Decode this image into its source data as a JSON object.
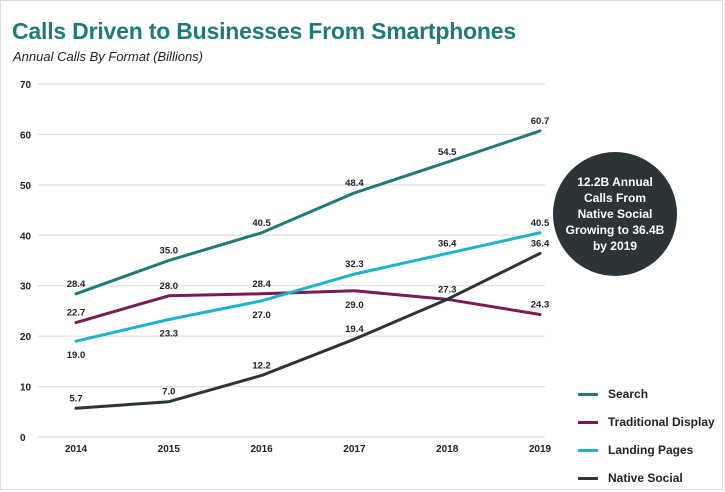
{
  "title": "Calls Driven to Businesses From Smartphones",
  "subtitle": "Annual Calls By Format (Billions)",
  "callout": "12.2B Annual Calls From Native Social Growing to 36.4B by 2019",
  "colors": {
    "Search": "#1f7a78",
    "Traditional Display": "#7a1c52",
    "Landing Pages": "#1fb3c9",
    "Native Social": "#2c3438",
    "grid": "#d9d9d9",
    "callout": "#2c3438"
  },
  "chart_data": {
    "type": "line",
    "title": "Calls Driven to Businesses From Smartphones",
    "subtitle": "Annual Calls By Format (Billions)",
    "xlabel": "",
    "ylabel": "",
    "categories": [
      "2014",
      "2015",
      "2016",
      "2017",
      "2018",
      "2019"
    ],
    "ylim": [
      0,
      70
    ],
    "yticks": [
      0,
      10,
      20,
      30,
      40,
      50,
      60,
      70
    ],
    "grid": true,
    "legend": "bottom-right",
    "series": [
      {
        "name": "Search",
        "values": [
          28.4,
          35.0,
          40.5,
          48.4,
          54.5,
          60.7
        ],
        "labels": [
          "28.4",
          "35.0",
          "40.5",
          "48.4",
          "54.5",
          "60.7"
        ],
        "label_pos": [
          "above",
          "above",
          "above",
          "above",
          "above",
          "above"
        ]
      },
      {
        "name": "Traditional Display",
        "values": [
          22.7,
          28.0,
          28.4,
          29.0,
          27.3,
          24.3
        ],
        "labels": [
          "22.7",
          "28.0",
          "28.4",
          "29.0",
          "27.3",
          "24.3"
        ],
        "label_pos": [
          "above",
          "above",
          "above",
          "below",
          "above",
          "above"
        ]
      },
      {
        "name": "Landing Pages",
        "values": [
          19.0,
          23.3,
          27.0,
          32.3,
          36.4,
          40.5
        ],
        "labels": [
          "19.0",
          "23.3",
          "27.0",
          "32.3",
          "36.4",
          "40.5"
        ],
        "label_pos": [
          "below",
          "below",
          "below",
          "above",
          "above",
          "above"
        ]
      },
      {
        "name": "Native Social",
        "values": [
          5.7,
          7.0,
          12.2,
          19.4,
          27.3,
          36.4
        ],
        "labels": [
          "5.7",
          "7.0",
          "12.2",
          "19.4",
          "",
          "36.4"
        ],
        "label_pos": [
          "above",
          "above",
          "above",
          "above",
          "above",
          "above"
        ]
      }
    ]
  }
}
